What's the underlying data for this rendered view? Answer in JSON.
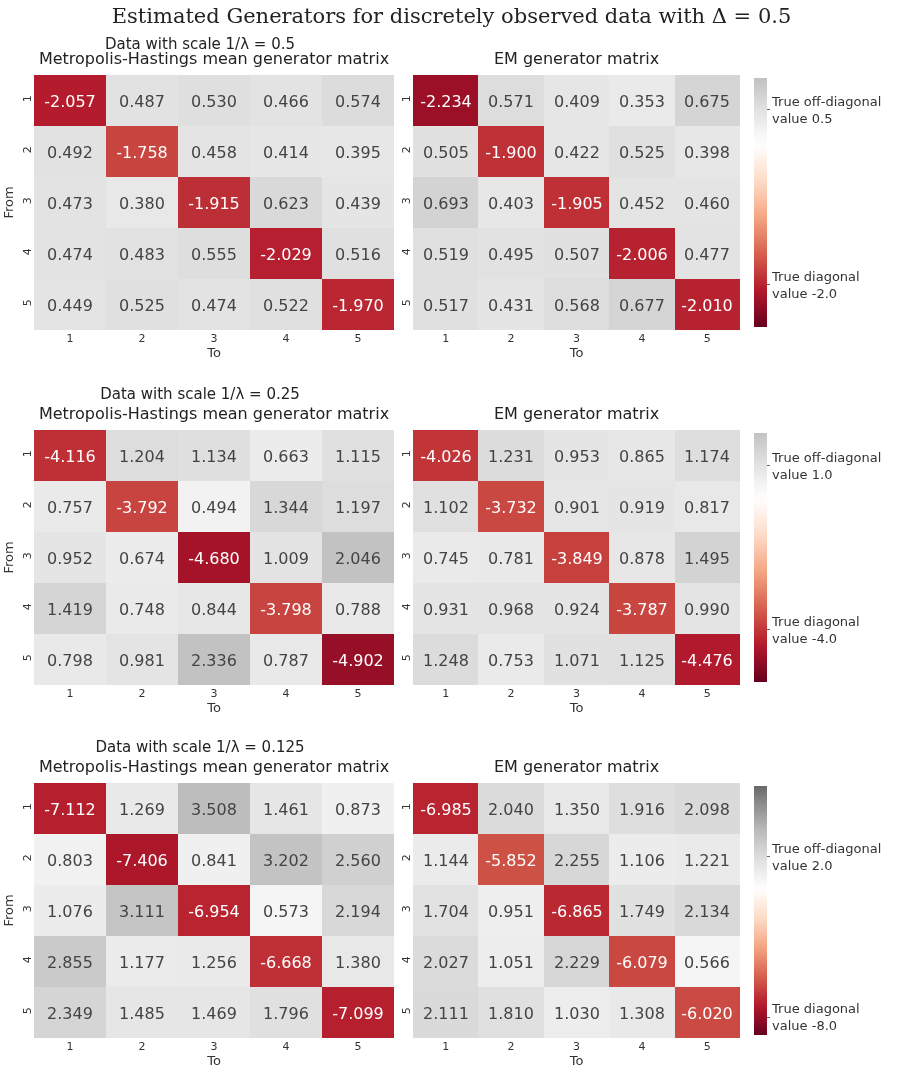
{
  "chart_data": [
    {
      "type": "heatmap",
      "title": "Metropolis-Hastings mean generator matrix",
      "subtitle": "Data with scale 1/λ = 0.5",
      "annotations": [
        "Estimated Generators for discretely observed data with Δ = 0.5"
      ],
      "xlabel": "To",
      "ylabel": "From",
      "categories": [
        "1",
        "2",
        "3",
        "4",
        "5"
      ],
      "y_categories": [
        "1",
        "2",
        "3",
        "4",
        "5"
      ],
      "cells": [
        [
          -2.057,
          0.487,
          0.53,
          0.466,
          0.574
        ],
        [
          0.492,
          -1.758,
          0.458,
          0.414,
          0.395
        ],
        [
          0.473,
          0.38,
          -1.915,
          0.623,
          0.439
        ],
        [
          0.474,
          0.483,
          0.555,
          -2.029,
          0.516
        ],
        [
          0.449,
          0.525,
          0.474,
          0.522,
          -1.97
        ]
      ],
      "cell_labels": [
        [
          "-2.057",
          "0.487",
          "0.530",
          "0.466",
          "0.574"
        ],
        [
          "0.492",
          "-1.758",
          "0.458",
          "0.414",
          "0.395"
        ],
        [
          "0.473",
          "0.380",
          "-1.915",
          "0.623",
          "0.439"
        ],
        [
          "0.474",
          "0.483",
          "0.555",
          "-2.029",
          "0.516"
        ],
        [
          "0.449",
          "0.525",
          "0.474",
          "0.522",
          "-1.970"
        ]
      ]
    },
    {
      "type": "heatmap",
      "title": "EM generator matrix",
      "xlabel": "To",
      "categories": [
        "1",
        "2",
        "3",
        "4",
        "5"
      ],
      "y_categories": [
        "1",
        "2",
        "3",
        "4",
        "5"
      ],
      "clim": [
        -2.6,
        0.95
      ],
      "cticks": [
        {
          "value": 0.5,
          "label": "True off-diagonal\nvalue 0.5"
        },
        {
          "value": -2.0,
          "label": "True diagonal\nvalue -2.0"
        }
      ],
      "cells": [
        [
          -2.234,
          0.571,
          0.409,
          0.353,
          0.675
        ],
        [
          0.505,
          -1.9,
          0.422,
          0.525,
          0.398
        ],
        [
          0.693,
          0.403,
          -1.905,
          0.452,
          0.46
        ],
        [
          0.519,
          0.495,
          0.507,
          -2.006,
          0.477
        ],
        [
          0.517,
          0.431,
          0.568,
          0.677,
          -2.01
        ]
      ],
      "cell_labels": [
        [
          "-2.234",
          "0.571",
          "0.409",
          "0.353",
          "0.675"
        ],
        [
          "0.505",
          "-1.900",
          "0.422",
          "0.525",
          "0.398"
        ],
        [
          "0.693",
          "0.403",
          "-1.905",
          "0.452",
          "0.460"
        ],
        [
          "0.519",
          "0.495",
          "0.507",
          "-2.006",
          "0.477"
        ],
        [
          "0.517",
          "0.431",
          "0.568",
          "0.677",
          "-2.010"
        ]
      ]
    },
    {
      "type": "heatmap",
      "title": "Metropolis-Hastings mean generator matrix",
      "subtitle": "Data with scale 1/λ = 0.25",
      "xlabel": "To",
      "ylabel": "From",
      "categories": [
        "1",
        "2",
        "3",
        "4",
        "5"
      ],
      "y_categories": [
        "1",
        "2",
        "3",
        "4",
        "5"
      ],
      "cells": [
        [
          -4.116,
          1.204,
          1.134,
          0.663,
          1.115
        ],
        [
          0.757,
          -3.792,
          0.494,
          1.344,
          1.197
        ],
        [
          0.952,
          0.674,
          -4.68,
          1.009,
          2.046
        ],
        [
          1.419,
          0.748,
          0.844,
          -3.798,
          0.788
        ],
        [
          0.798,
          0.981,
          2.336,
          0.787,
          -4.902
        ]
      ],
      "cell_labels": [
        [
          "-4.116",
          "1.204",
          "1.134",
          "0.663",
          "1.115"
        ],
        [
          "0.757",
          "-3.792",
          "0.494",
          "1.344",
          "1.197"
        ],
        [
          "0.952",
          "0.674",
          "-4.680",
          "1.009",
          "2.046"
        ],
        [
          "1.419",
          "0.748",
          "0.844",
          "-3.798",
          "0.788"
        ],
        [
          "0.798",
          "0.981",
          "2.336",
          "0.787",
          "-4.902"
        ]
      ]
    },
    {
      "type": "heatmap",
      "title": "EM generator matrix",
      "xlabel": "To",
      "categories": [
        "1",
        "2",
        "3",
        "4",
        "5"
      ],
      "y_categories": [
        "1",
        "2",
        "3",
        "4",
        "5"
      ],
      "clim": [
        -5.6,
        2.0
      ],
      "cticks": [
        {
          "value": 1.0,
          "label": "True off-diagonal\nvalue 1.0"
        },
        {
          "value": -4.0,
          "label": "True diagonal\nvalue -4.0"
        }
      ],
      "cells": [
        [
          -4.026,
          1.231,
          0.953,
          0.865,
          1.174
        ],
        [
          1.102,
          -3.732,
          0.901,
          0.919,
          0.817
        ],
        [
          0.745,
          0.781,
          -3.849,
          0.878,
          1.495
        ],
        [
          0.931,
          0.968,
          0.924,
          -3.787,
          0.99
        ],
        [
          1.248,
          0.753,
          1.071,
          1.125,
          -4.476
        ]
      ],
      "cell_labels": [
        [
          "-4.026",
          "1.231",
          "0.953",
          "0.865",
          "1.174"
        ],
        [
          "1.102",
          "-3.732",
          "0.901",
          "0.919",
          "0.817"
        ],
        [
          "0.745",
          "0.781",
          "-3.849",
          "0.878",
          "1.495"
        ],
        [
          "0.931",
          "0.968",
          "0.924",
          "-3.787",
          "0.990"
        ],
        [
          "1.248",
          "0.753",
          "1.071",
          "1.125",
          "-4.476"
        ]
      ]
    },
    {
      "type": "heatmap",
      "title": "Metropolis-Hastings mean generator matrix",
      "subtitle": "Data with scale 1/λ = 0.125",
      "xlabel": "To",
      "ylabel": "From",
      "categories": [
        "1",
        "2",
        "3",
        "4",
        "5"
      ],
      "y_categories": [
        "1",
        "2",
        "3",
        "4",
        "5"
      ],
      "cells": [
        [
          -7.112,
          1.269,
          3.508,
          1.461,
          0.873
        ],
        [
          0.803,
          -7.406,
          0.841,
          3.202,
          2.56
        ],
        [
          1.076,
          3.111,
          -6.954,
          0.573,
          2.194
        ],
        [
          2.855,
          1.177,
          1.256,
          -6.668,
          1.38
        ],
        [
          2.349,
          1.485,
          1.469,
          1.796,
          -7.099
        ]
      ],
      "cell_labels": [
        [
          "-7.112",
          "1.269",
          "3.508",
          "1.461",
          "0.873"
        ],
        [
          "0.803",
          "-7.406",
          "0.841",
          "3.202",
          "2.560"
        ],
        [
          "1.076",
          "3.111",
          "-6.954",
          "0.573",
          "2.194"
        ],
        [
          "2.855",
          "1.177",
          "1.256",
          "-6.668",
          "1.380"
        ],
        [
          "2.349",
          "1.485",
          "1.469",
          "1.796",
          "-7.099"
        ]
      ]
    },
    {
      "type": "heatmap",
      "title": "EM generator matrix",
      "xlabel": "To",
      "categories": [
        "1",
        "2",
        "3",
        "4",
        "5"
      ],
      "y_categories": [
        "1",
        "2",
        "3",
        "4",
        "5"
      ],
      "clim": [
        -9.1,
        6.4
      ],
      "cticks": [
        {
          "value": 2.0,
          "label": "True off-diagonal\nvalue 2.0"
        },
        {
          "value": -8.0,
          "label": "True diagonal\nvalue -8.0"
        }
      ],
      "cells": [
        [
          -6.985,
          2.04,
          1.35,
          1.916,
          2.098
        ],
        [
          1.144,
          -5.852,
          2.255,
          1.106,
          1.221
        ],
        [
          1.704,
          0.951,
          -6.865,
          1.749,
          2.134
        ],
        [
          2.027,
          1.051,
          2.229,
          -6.079,
          0.566
        ],
        [
          2.111,
          1.81,
          1.03,
          1.308,
          -6.02
        ]
      ],
      "cell_labels": [
        [
          "-6.985",
          "2.040",
          "1.350",
          "1.916",
          "2.098"
        ],
        [
          "1.144",
          "-5.852",
          "2.255",
          "1.106",
          "1.221"
        ],
        [
          "1.704",
          "0.951",
          "-6.865",
          "1.749",
          "2.134"
        ],
        [
          "2.027",
          "1.051",
          "2.229",
          "-6.079",
          "0.566"
        ],
        [
          "2.111",
          "1.810",
          "1.030",
          "1.308",
          "-6.020"
        ]
      ]
    }
  ]
}
